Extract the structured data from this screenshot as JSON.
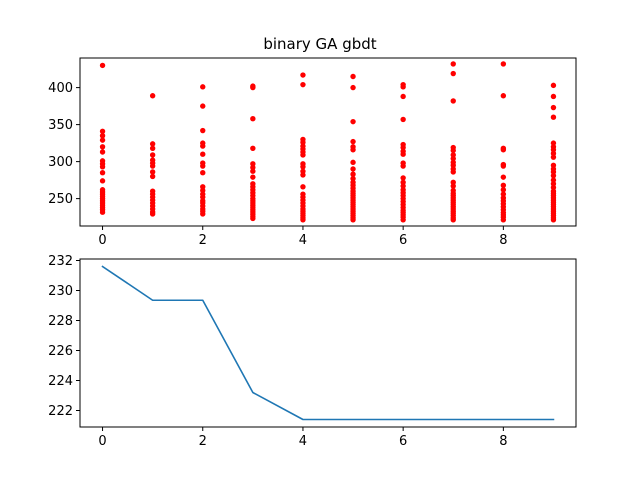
{
  "chart_data": [
    {
      "type": "scatter",
      "title": "binary GA gbdt",
      "xlabel": "",
      "ylabel": "",
      "xlim": [
        -0.45,
        9.45
      ],
      "ylim": [
        213,
        440
      ],
      "xticks": [
        0,
        2,
        4,
        6,
        8
      ],
      "yticks": [
        250,
        300,
        350,
        400
      ],
      "grid": false,
      "color": "#ff0000",
      "series": [
        {
          "points": [
            [
              0,
              231.6
            ],
            [
              0,
              235
            ],
            [
              0,
              238
            ],
            [
              0,
              241
            ],
            [
              0,
              244
            ],
            [
              0,
              247
            ],
            [
              0,
              250
            ],
            [
              0,
              253
            ],
            [
              0,
              256
            ],
            [
              0,
              259
            ],
            [
              0,
              262
            ],
            [
              0,
              274
            ],
            [
              0,
              285
            ],
            [
              0,
              293
            ],
            [
              0,
              297
            ],
            [
              0,
              301
            ],
            [
              0,
              313
            ],
            [
              0,
              320
            ],
            [
              0,
              329
            ],
            [
              0,
              335
            ],
            [
              0,
              341
            ],
            [
              0,
              430
            ],
            [
              1,
              229.3
            ],
            [
              1,
              232
            ],
            [
              1,
              236
            ],
            [
              1,
              240
            ],
            [
              1,
              244
            ],
            [
              1,
              248
            ],
            [
              1,
              252
            ],
            [
              1,
              256
            ],
            [
              1,
              260
            ],
            [
              1,
              280
            ],
            [
              1,
              286
            ],
            [
              1,
              294
            ],
            [
              1,
              298
            ],
            [
              1,
              302
            ],
            [
              1,
              309
            ],
            [
              1,
              318
            ],
            [
              1,
              324
            ],
            [
              1,
              389
            ],
            [
              2,
              229.3
            ],
            [
              2,
              233
            ],
            [
              2,
              236
            ],
            [
              2,
              240
            ],
            [
              2,
              244
            ],
            [
              2,
              247
            ],
            [
              2,
              252
            ],
            [
              2,
              256
            ],
            [
              2,
              261
            ],
            [
              2,
              266
            ],
            [
              2,
              285
            ],
            [
              2,
              294
            ],
            [
              2,
              298
            ],
            [
              2,
              310
            ],
            [
              2,
              321
            ],
            [
              2,
              325
            ],
            [
              2,
              342
            ],
            [
              2,
              375
            ],
            [
              2,
              401
            ],
            [
              3,
              223.2
            ],
            [
              3,
              226
            ],
            [
              3,
              229
            ],
            [
              3,
              232
            ],
            [
              3,
              235
            ],
            [
              3,
              238
            ],
            [
              3,
              241
            ],
            [
              3,
              244
            ],
            [
              3,
              247
            ],
            [
              3,
              250
            ],
            [
              3,
              254
            ],
            [
              3,
              258
            ],
            [
              3,
              262
            ],
            [
              3,
              266
            ],
            [
              3,
              270
            ],
            [
              3,
              279
            ],
            [
              3,
              287
            ],
            [
              3,
              292
            ],
            [
              3,
              297
            ],
            [
              3,
              318
            ],
            [
              3,
              358
            ],
            [
              3,
              400
            ],
            [
              3,
              402
            ],
            [
              4,
              221.4
            ],
            [
              4,
              224
            ],
            [
              4,
              227
            ],
            [
              4,
              230
            ],
            [
              4,
              233
            ],
            [
              4,
              236
            ],
            [
              4,
              240
            ],
            [
              4,
              244
            ],
            [
              4,
              248
            ],
            [
              4,
              252
            ],
            [
              4,
              256
            ],
            [
              4,
              266
            ],
            [
              4,
              282
            ],
            [
              4,
              287
            ],
            [
              4,
              293
            ],
            [
              4,
              297
            ],
            [
              4,
              309
            ],
            [
              4,
              313
            ],
            [
              4,
              317
            ],
            [
              4,
              321
            ],
            [
              4,
              326
            ],
            [
              4,
              330
            ],
            [
              4,
              404
            ],
            [
              4,
              417
            ],
            [
              5,
              221.4
            ],
            [
              5,
              224
            ],
            [
              5,
              227
            ],
            [
              5,
              230
            ],
            [
              5,
              233
            ],
            [
              5,
              236
            ],
            [
              5,
              239
            ],
            [
              5,
              242
            ],
            [
              5,
              245
            ],
            [
              5,
              248
            ],
            [
              5,
              251
            ],
            [
              5,
              254
            ],
            [
              5,
              257
            ],
            [
              5,
              260
            ],
            [
              5,
              264
            ],
            [
              5,
              268
            ],
            [
              5,
              272
            ],
            [
              5,
              277
            ],
            [
              5,
              283
            ],
            [
              5,
              290
            ],
            [
              5,
              299
            ],
            [
              5,
              316
            ],
            [
              5,
              320
            ],
            [
              5,
              327
            ],
            [
              5,
              354
            ],
            [
              5,
              400
            ],
            [
              5,
              415
            ],
            [
              6,
              221.4
            ],
            [
              6,
              225
            ],
            [
              6,
              228
            ],
            [
              6,
              231
            ],
            [
              6,
              234
            ],
            [
              6,
              238
            ],
            [
              6,
              242
            ],
            [
              6,
              246
            ],
            [
              6,
              250
            ],
            [
              6,
              254
            ],
            [
              6,
              258
            ],
            [
              6,
              262
            ],
            [
              6,
              267
            ],
            [
              6,
              272
            ],
            [
              6,
              278
            ],
            [
              6,
              294
            ],
            [
              6,
              298
            ],
            [
              6,
              310
            ],
            [
              6,
              314
            ],
            [
              6,
              319
            ],
            [
              6,
              323
            ],
            [
              6,
              357
            ],
            [
              6,
              388
            ],
            [
              6,
              401
            ],
            [
              6,
              404
            ],
            [
              7,
              221.4
            ],
            [
              7,
              224
            ],
            [
              7,
              227
            ],
            [
              7,
              230
            ],
            [
              7,
              233
            ],
            [
              7,
              236
            ],
            [
              7,
              239
            ],
            [
              7,
              242
            ],
            [
              7,
              245
            ],
            [
              7,
              248
            ],
            [
              7,
              251
            ],
            [
              7,
              254
            ],
            [
              7,
              257
            ],
            [
              7,
              261
            ],
            [
              7,
              267
            ],
            [
              7,
              272
            ],
            [
              7,
              286
            ],
            [
              7,
              290
            ],
            [
              7,
              295
            ],
            [
              7,
              299
            ],
            [
              7,
              304
            ],
            [
              7,
              309
            ],
            [
              7,
              315
            ],
            [
              7,
              319
            ],
            [
              7,
              382
            ],
            [
              7,
              419
            ],
            [
              7,
              432
            ],
            [
              8,
              221.4
            ],
            [
              8,
              225
            ],
            [
              8,
              228
            ],
            [
              8,
              231
            ],
            [
              8,
              235
            ],
            [
              8,
              239
            ],
            [
              8,
              243
            ],
            [
              8,
              247
            ],
            [
              8,
              251
            ],
            [
              8,
              256
            ],
            [
              8,
              262
            ],
            [
              8,
              268
            ],
            [
              8,
              279
            ],
            [
              8,
              294
            ],
            [
              8,
              296
            ],
            [
              8,
              316
            ],
            [
              8,
              318
            ],
            [
              8,
              389
            ],
            [
              8,
              432
            ],
            [
              9,
              221.4
            ],
            [
              9,
              224
            ],
            [
              9,
              227
            ],
            [
              9,
              230
            ],
            [
              9,
              233
            ],
            [
              9,
              236
            ],
            [
              9,
              239
            ],
            [
              9,
              242
            ],
            [
              9,
              245
            ],
            [
              9,
              248
            ],
            [
              9,
              251
            ],
            [
              9,
              254
            ],
            [
              9,
              257
            ],
            [
              9,
              260
            ],
            [
              9,
              265
            ],
            [
              9,
              270
            ],
            [
              9,
              275
            ],
            [
              9,
              281
            ],
            [
              9,
              286
            ],
            [
              9,
              290
            ],
            [
              9,
              295
            ],
            [
              9,
              306
            ],
            [
              9,
              311
            ],
            [
              9,
              316
            ],
            [
              9,
              320
            ],
            [
              9,
              325
            ],
            [
              9,
              360
            ],
            [
              9,
              373
            ],
            [
              9,
              388
            ],
            [
              9,
              403
            ]
          ]
        }
      ]
    },
    {
      "type": "line",
      "title": "",
      "xlabel": "",
      "ylabel": "",
      "xlim": [
        -0.45,
        9.45
      ],
      "ylim": [
        220.9,
        232.1
      ],
      "xticks": [
        0,
        2,
        4,
        6,
        8
      ],
      "yticks": [
        222,
        224,
        226,
        228,
        230,
        232
      ],
      "grid": false,
      "color": "#1f77b4",
      "series": [
        {
          "x": [
            0,
            1,
            2,
            3,
            4,
            5,
            6,
            7,
            8,
            9
          ],
          "values": [
            231.6,
            229.35,
            229.35,
            223.2,
            221.4,
            221.4,
            221.4,
            221.4,
            221.4,
            221.4
          ]
        }
      ]
    }
  ]
}
